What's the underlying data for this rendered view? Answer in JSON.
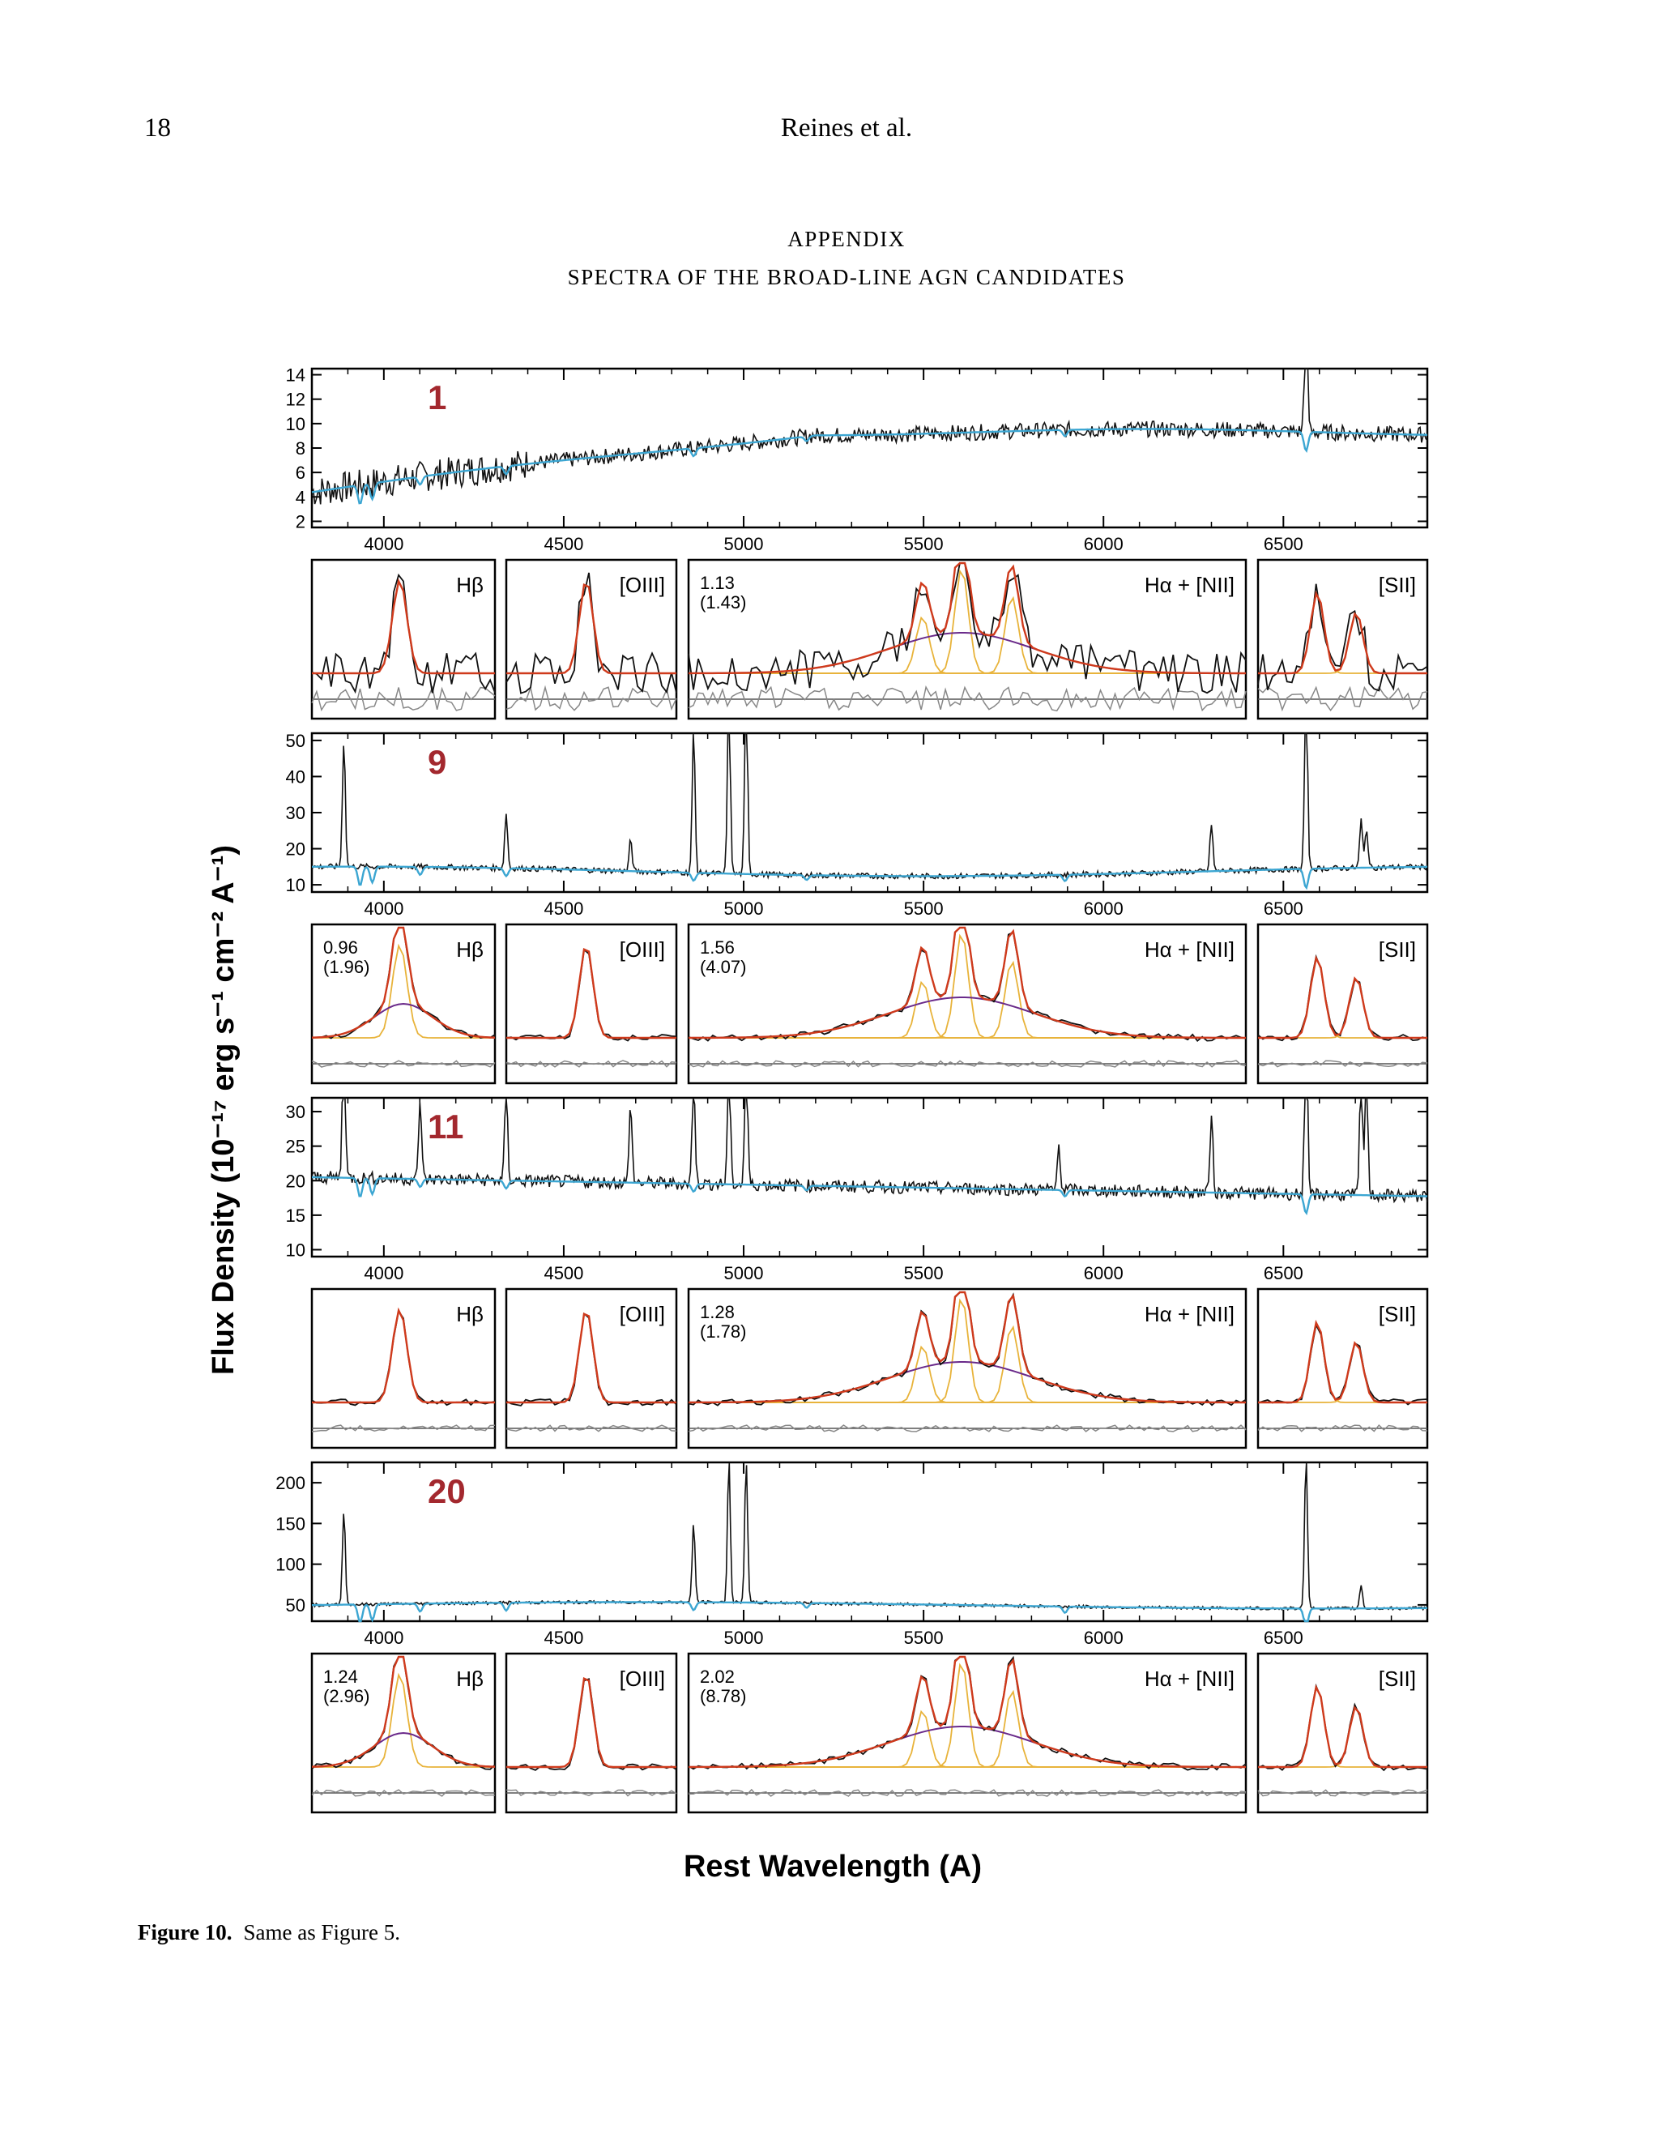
{
  "page": {
    "number": "18",
    "running_head": "Reines et al."
  },
  "appendix": {
    "title": "APPENDIX",
    "subtitle": "SPECTRA OF THE BROAD-LINE AGN CANDIDATES"
  },
  "figure": {
    "y_label": "Flux Density (10⁻¹⁷ erg s⁻¹ cm⁻² A⁻¹)",
    "x_label": "Rest Wavelength (A)",
    "caption_label": "Figure 10.",
    "caption_text": "Same as Figure 5.",
    "x_ticks": [
      "4000",
      "4500",
      "5000",
      "5500",
      "6000",
      "6500"
    ],
    "x_range": [
      3800,
      6900
    ],
    "colors": {
      "data": "#111111",
      "model": "#3ca6d2",
      "fit_total": "#cf3a1c",
      "narrow": "#e8b33a",
      "broad": "#6a2a8a",
      "id_label": "#a3282e"
    },
    "zoom_labels": {
      "hb": "Hβ",
      "oiii": "[OIII]",
      "ha": "Hα + [NII]",
      "sii": "[SII]"
    },
    "objects": [
      {
        "id": "1",
        "y_ticks": [
          "14",
          "12",
          "10",
          "8",
          "6",
          "4",
          "2"
        ],
        "y_range": [
          1.5,
          14.5
        ],
        "halpha_fwhm": "1.13",
        "halpha_fwhm_err": "(1.43)",
        "hbeta_fwhm": "",
        "hbeta_fwhm_err": ""
      },
      {
        "id": "9",
        "y_ticks": [
          "50",
          "40",
          "30",
          "20",
          "10"
        ],
        "y_range": [
          8,
          52
        ],
        "halpha_fwhm": "1.56",
        "halpha_fwhm_err": "(4.07)",
        "hbeta_fwhm": "0.96",
        "hbeta_fwhm_err": "(1.96)"
      },
      {
        "id": "11",
        "y_ticks": [
          "30",
          "25",
          "20",
          "15",
          "10"
        ],
        "y_range": [
          9,
          32
        ],
        "halpha_fwhm": "1.28",
        "halpha_fwhm_err": "(1.78)",
        "hbeta_fwhm": "",
        "hbeta_fwhm_err": ""
      },
      {
        "id": "20",
        "y_ticks": [
          "200",
          "150",
          "100",
          "50"
        ],
        "y_range": [
          30,
          225
        ],
        "halpha_fwhm": "2.02",
        "halpha_fwhm_err": "(8.78)",
        "hbeta_fwhm": "1.24",
        "hbeta_fwhm_err": "(2.96)"
      }
    ]
  }
}
